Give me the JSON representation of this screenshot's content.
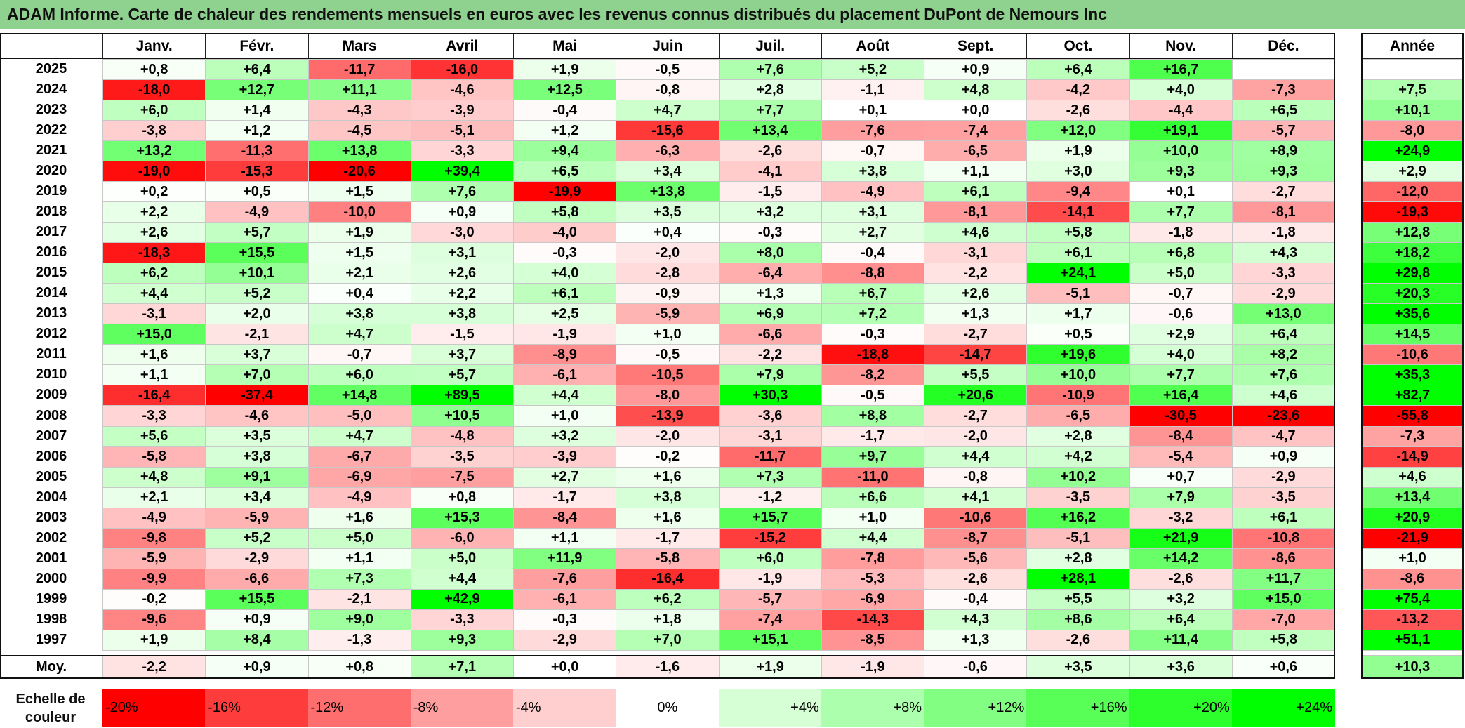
{
  "title": "ADAM Informe. Carte de chaleur des rendements mensuels en euros avec les revenus connus distribués du placement DuPont de Nemours Inc",
  "months": [
    "Janv.",
    "Févr.",
    "Mars",
    "Avril",
    "Mai",
    "Juin",
    "Juil.",
    "Août",
    "Sept.",
    "Oct.",
    "Nov.",
    "Déc."
  ],
  "year_header": "Année",
  "avg_label": "Moy.",
  "legend_label": "Echelle de couleur",
  "chart_data": {
    "type": "heatmap",
    "title": "ADAM Informe. Carte de chaleur des rendements mensuels en euros avec les revenus connus distribués du placement DuPont de Nemours Inc",
    "x_categories": [
      "Janv.",
      "Févr.",
      "Mars",
      "Avril",
      "Mai",
      "Juin",
      "Juil.",
      "Août",
      "Sept.",
      "Oct.",
      "Nov.",
      "Déc."
    ],
    "rows": [
      {
        "year": "2025",
        "values": [
          "+0,8",
          "+6,4",
          "-11,7",
          "-16,0",
          "+1,9",
          "-0,5",
          "+7,6",
          "+5,2",
          "+0,9",
          "+6,4",
          "+16,7",
          ""
        ],
        "annual": ""
      },
      {
        "year": "2024",
        "values": [
          "-18,0",
          "+12,7",
          "+11,1",
          "-4,6",
          "+12,5",
          "-0,8",
          "+2,8",
          "-1,1",
          "+4,8",
          "-4,2",
          "+4,0",
          "-7,3"
        ],
        "annual": "+7,5"
      },
      {
        "year": "2023",
        "values": [
          "+6,0",
          "+1,4",
          "-4,3",
          "-3,9",
          "-0,4",
          "+4,7",
          "+7,7",
          "+0,1",
          "+0,0",
          "-2,6",
          "-4,4",
          "+6,5"
        ],
        "annual": "+10,1"
      },
      {
        "year": "2022",
        "values": [
          "-3,8",
          "+1,2",
          "-4,5",
          "-5,1",
          "+1,2",
          "-15,6",
          "+13,4",
          "-7,6",
          "-7,4",
          "+12,0",
          "+19,1",
          "-5,7"
        ],
        "annual": "-8,0"
      },
      {
        "year": "2021",
        "values": [
          "+13,2",
          "-11,3",
          "+13,8",
          "-3,3",
          "+9,4",
          "-6,3",
          "-2,6",
          "-0,7",
          "-6,5",
          "+1,9",
          "+10,0",
          "+8,9"
        ],
        "annual": "+24,9"
      },
      {
        "year": "2020",
        "values": [
          "-19,0",
          "-15,3",
          "-20,6",
          "+39,4",
          "+6,5",
          "+3,4",
          "-4,1",
          "+3,8",
          "+1,1",
          "+3,0",
          "+9,3",
          "+9,3"
        ],
        "annual": "+2,9"
      },
      {
        "year": "2019",
        "values": [
          "+0,2",
          "+0,5",
          "+1,5",
          "+7,6",
          "-19,9",
          "+13,8",
          "-1,5",
          "-4,9",
          "+6,1",
          "-9,4",
          "+0,1",
          "-2,7"
        ],
        "annual": "-12,0"
      },
      {
        "year": "2018",
        "values": [
          "+2,2",
          "-4,9",
          "-10,0",
          "+0,9",
          "+5,8",
          "+3,5",
          "+3,2",
          "+3,1",
          "-8,1",
          "-14,1",
          "+7,7",
          "-8,1"
        ],
        "annual": "-19,3"
      },
      {
        "year": "2017",
        "values": [
          "+2,6",
          "+5,7",
          "+1,9",
          "-3,0",
          "-4,0",
          "+0,4",
          "-0,3",
          "+2,7",
          "+4,6",
          "+5,8",
          "-1,8",
          "-1,8"
        ],
        "annual": "+12,8"
      },
      {
        "year": "2016",
        "values": [
          "-18,3",
          "+15,5",
          "+1,5",
          "+3,1",
          "-0,3",
          "-2,0",
          "+8,0",
          "-0,4",
          "-3,1",
          "+6,1",
          "+6,8",
          "+4,3"
        ],
        "annual": "+18,2"
      },
      {
        "year": "2015",
        "values": [
          "+6,2",
          "+10,1",
          "+2,1",
          "+2,6",
          "+4,0",
          "-2,8",
          "-6,4",
          "-8,8",
          "-2,2",
          "+24,1",
          "+5,0",
          "-3,3"
        ],
        "annual": "+29,8"
      },
      {
        "year": "2014",
        "values": [
          "+4,4",
          "+5,2",
          "+0,4",
          "+2,2",
          "+6,1",
          "-0,9",
          "+1,3",
          "+6,7",
          "+2,6",
          "-5,1",
          "-0,7",
          "-2,9"
        ],
        "annual": "+20,3"
      },
      {
        "year": "2013",
        "values": [
          "-3,1",
          "+2,0",
          "+3,8",
          "+3,8",
          "+2,5",
          "-5,9",
          "+6,9",
          "+7,2",
          "+1,3",
          "+1,7",
          "-0,6",
          "+13,0"
        ],
        "annual": "+35,6"
      },
      {
        "year": "2012",
        "values": [
          "+15,0",
          "-2,1",
          "+4,7",
          "-1,5",
          "-1,9",
          "+1,0",
          "-6,6",
          "-0,3",
          "-2,7",
          "+0,5",
          "+2,9",
          "+6,4"
        ],
        "annual": "+14,5"
      },
      {
        "year": "2011",
        "values": [
          "+1,6",
          "+3,7",
          "-0,7",
          "+3,7",
          "-8,9",
          "-0,5",
          "-2,2",
          "-18,8",
          "-14,7",
          "+19,6",
          "+4,0",
          "+8,2"
        ],
        "annual": "-10,6"
      },
      {
        "year": "2010",
        "values": [
          "+1,1",
          "+7,0",
          "+6,0",
          "+5,7",
          "-6,1",
          "-10,5",
          "+7,9",
          "-8,2",
          "+5,5",
          "+10,0",
          "+7,7",
          "+7,6"
        ],
        "annual": "+35,3"
      },
      {
        "year": "2009",
        "values": [
          "-16,4",
          "-37,4",
          "+14,8",
          "+89,5",
          "+4,4",
          "-8,0",
          "+30,3",
          "-0,5",
          "+20,6",
          "-10,9",
          "+16,4",
          "+4,6"
        ],
        "annual": "+82,7"
      },
      {
        "year": "2008",
        "values": [
          "-3,3",
          "-4,6",
          "-5,0",
          "+10,5",
          "+1,0",
          "-13,9",
          "-3,6",
          "+8,8",
          "-2,7",
          "-6,5",
          "-30,5",
          "-23,6"
        ],
        "annual": "-55,8"
      },
      {
        "year": "2007",
        "values": [
          "+5,6",
          "+3,5",
          "+4,7",
          "-4,8",
          "+3,2",
          "-2,0",
          "-3,1",
          "-1,7",
          "-2,0",
          "+2,8",
          "-8,4",
          "-4,7"
        ],
        "annual": "-7,3"
      },
      {
        "year": "2006",
        "values": [
          "-5,8",
          "+3,8",
          "-6,7",
          "-3,5",
          "-3,9",
          "-0,2",
          "-11,7",
          "+9,7",
          "+4,4",
          "+4,2",
          "-5,4",
          "+0,9"
        ],
        "annual": "-14,9"
      },
      {
        "year": "2005",
        "values": [
          "+4,8",
          "+9,1",
          "-6,9",
          "-7,5",
          "+2,7",
          "+1,6",
          "+7,3",
          "-11,0",
          "-0,8",
          "+10,2",
          "+0,7",
          "-2,9"
        ],
        "annual": "+4,6"
      },
      {
        "year": "2004",
        "values": [
          "+2,1",
          "+3,4",
          "-4,9",
          "+0,8",
          "-1,7",
          "+3,8",
          "-1,2",
          "+6,6",
          "+4,1",
          "-3,5",
          "+7,9",
          "-3,5"
        ],
        "annual": "+13,4"
      },
      {
        "year": "2003",
        "values": [
          "-4,9",
          "-5,9",
          "+1,6",
          "+15,3",
          "-8,4",
          "+1,6",
          "+15,7",
          "+1,0",
          "-10,6",
          "+16,2",
          "-3,2",
          "+6,1"
        ],
        "annual": "+20,9"
      },
      {
        "year": "2002",
        "values": [
          "-9,8",
          "+5,2",
          "+5,0",
          "-6,0",
          "+1,1",
          "-1,7",
          "-15,2",
          "+4,4",
          "-8,7",
          "-5,1",
          "+21,9",
          "-10,8"
        ],
        "annual": "-21,9"
      },
      {
        "year": "2001",
        "values": [
          "-5,9",
          "-2,9",
          "+1,1",
          "+5,0",
          "+11,9",
          "-5,8",
          "+6,0",
          "-7,8",
          "-5,6",
          "+2,8",
          "+14,2",
          "-8,6"
        ],
        "annual": "+1,0"
      },
      {
        "year": "2000",
        "values": [
          "-9,9",
          "-6,6",
          "+7,3",
          "+4,4",
          "-7,6",
          "-16,4",
          "-1,9",
          "-5,3",
          "-2,6",
          "+28,1",
          "-2,6",
          "+11,7"
        ],
        "annual": "-8,6"
      },
      {
        "year": "1999",
        "values": [
          "-0,2",
          "+15,5",
          "-2,1",
          "+42,9",
          "-6,1",
          "+6,2",
          "-5,7",
          "-6,9",
          "-0,4",
          "+5,5",
          "+3,2",
          "+15,0"
        ],
        "annual": "+75,4"
      },
      {
        "year": "1998",
        "values": [
          "-9,6",
          "+0,9",
          "+9,0",
          "-3,3",
          "-0,3",
          "+1,8",
          "-7,4",
          "-14,3",
          "+4,3",
          "+8,6",
          "+6,4",
          "-7,0"
        ],
        "annual": "-13,2"
      },
      {
        "year": "1997",
        "values": [
          "+1,9",
          "+8,4",
          "-1,3",
          "+9,3",
          "-2,9",
          "+7,0",
          "+15,1",
          "-8,5",
          "+1,3",
          "-2,6",
          "+11,4",
          "+5,8"
        ],
        "annual": "+51,1"
      }
    ],
    "average": {
      "values": [
        "-2,2",
        "+0,9",
        "+0,8",
        "+7,1",
        "+0,0",
        "-1,6",
        "+1,9",
        "-1,9",
        "-0,6",
        "+3,5",
        "+3,6",
        "+0,6"
      ],
      "annual": "+10,3"
    },
    "color_scale": [
      {
        "label": "-20%",
        "value": -20,
        "color": "#ff0000"
      },
      {
        "label": "-16%",
        "value": -16,
        "color": "#ff3c3c"
      },
      {
        "label": "-12%",
        "value": -12,
        "color": "#ff6e6e"
      },
      {
        "label": "-8%",
        "value": -8,
        "color": "#ff9e9e"
      },
      {
        "label": "-4%",
        "value": -4,
        "color": "#ffcfcf"
      },
      {
        "label": "0%",
        "value": 0,
        "color": "#ffffff"
      },
      {
        "label": "+4%",
        "value": 4,
        "color": "#d6ffd6"
      },
      {
        "label": "+8%",
        "value": 8,
        "color": "#acffac"
      },
      {
        "label": "+12%",
        "value": 12,
        "color": "#82ff82"
      },
      {
        "label": "+16%",
        "value": 16,
        "color": "#57ff57"
      },
      {
        "label": "+20%",
        "value": 20,
        "color": "#2cff2c"
      },
      {
        "label": "+24%",
        "value": 24,
        "color": "#00ff00"
      }
    ]
  }
}
